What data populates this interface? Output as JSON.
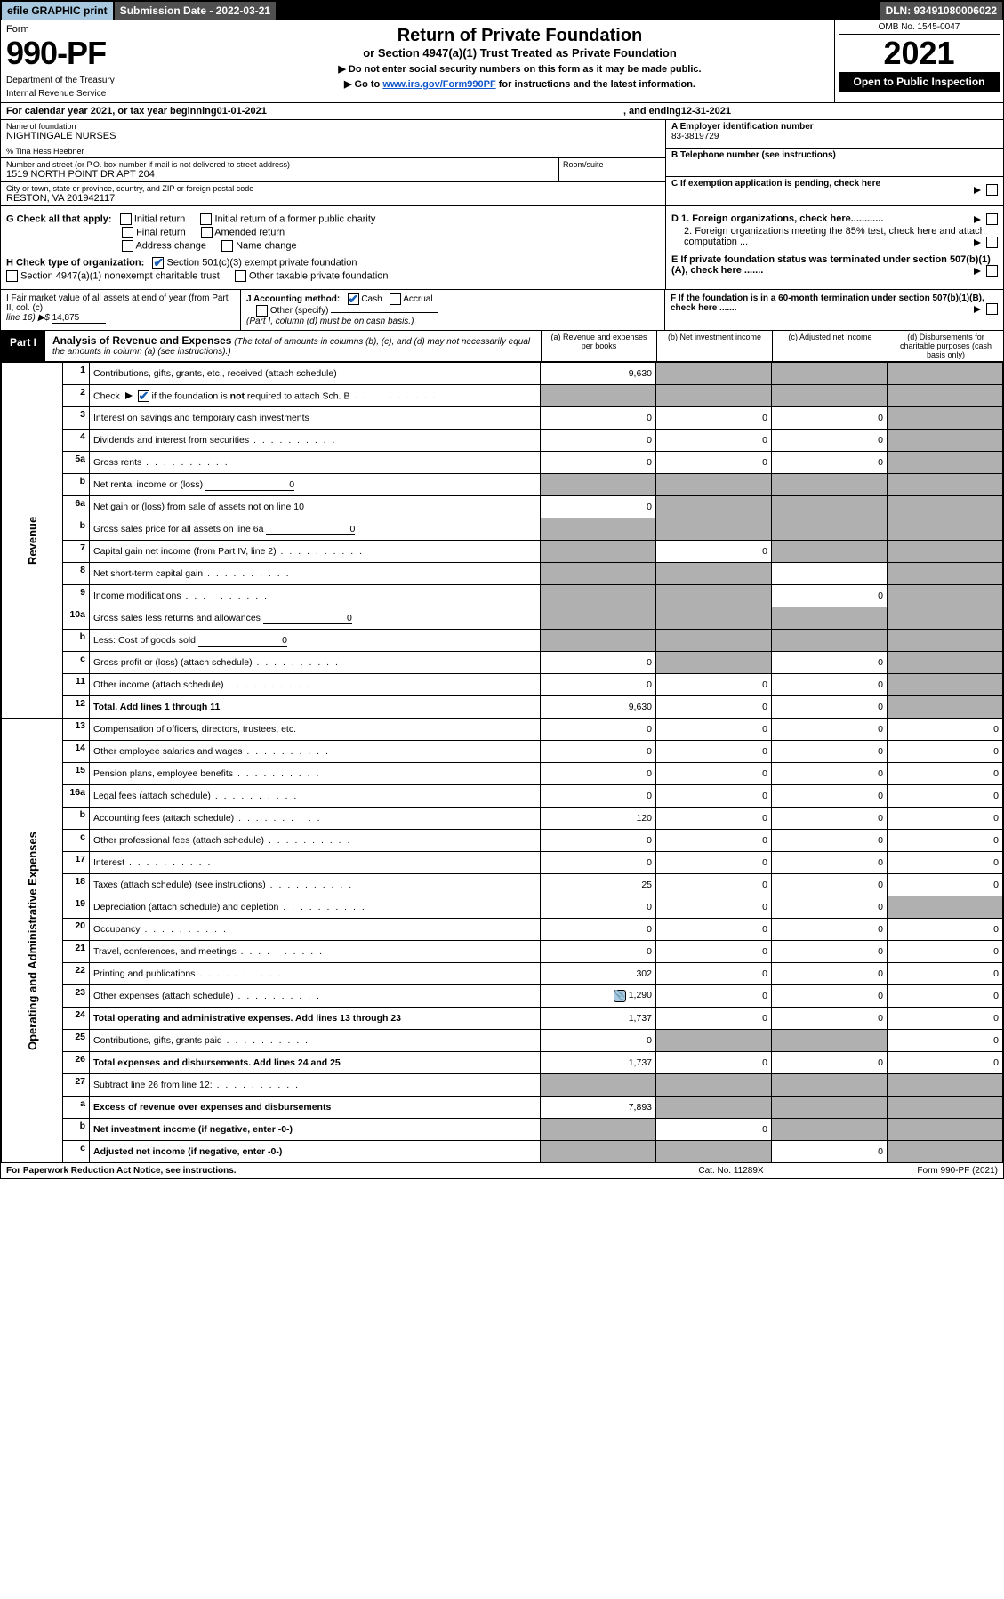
{
  "topbar": {
    "efile": "efile GRAPHIC print",
    "submission_label": "Submission Date - 2022-03-21",
    "dln_label": "DLN: 93491080006022"
  },
  "header": {
    "form_label": "Form",
    "form_number": "990-PF",
    "dept1": "Department of the Treasury",
    "dept2": "Internal Revenue Service",
    "title1": "Return of Private Foundation",
    "title2": "or Section 4947(a)(1) Trust Treated as Private Foundation",
    "title3": "▶ Do not enter social security numbers on this form as it may be made public.",
    "title4_pre": "▶ Go to ",
    "title4_link": "www.irs.gov/Form990PF",
    "title4_post": " for instructions and the latest information.",
    "omb": "OMB No. 1545-0047",
    "year": "2021",
    "open": "Open to Public Inspection"
  },
  "period": {
    "pre": "For calendar year 2021, or tax year beginning ",
    "begin": "01-01-2021",
    "mid": ", and ending ",
    "end": "12-31-2021"
  },
  "info": {
    "name_lbl": "Name of foundation",
    "name": "NIGHTINGALE NURSES",
    "co": "% Tina Hess Heebner",
    "addr_lbl": "Number and street (or P.O. box number if mail is not delivered to street address)",
    "addr": "1519 NORTH POINT DR APT 204",
    "room_lbl": "Room/suite",
    "city_lbl": "City or town, state or province, country, and ZIP or foreign postal code",
    "city": "RESTON, VA  201942117",
    "ein_lbl": "A Employer identification number",
    "ein": "83-3819729",
    "phone_lbl": "B Telephone number (see instructions)",
    "c_lbl": "C If exemption application is pending, check here",
    "d1_lbl": "D 1. Foreign organizations, check here............",
    "d2_lbl": "2. Foreign organizations meeting the 85% test, check here and attach computation ...",
    "e_lbl": "E  If private foundation status was terminated under section 507(b)(1)(A), check here .......",
    "f_lbl": "F  If the foundation is in a 60-month termination under section 507(b)(1)(B), check here ......."
  },
  "checks": {
    "g_lbl": "G Check all that apply:",
    "g_opts": [
      "Initial return",
      "Initial return of a former public charity",
      "Final return",
      "Amended return",
      "Address change",
      "Name change"
    ],
    "h_lbl": "H Check type of organization:",
    "h_opt1": "Section 501(c)(3) exempt private foundation",
    "h_opt2": "Section 4947(a)(1) nonexempt charitable trust",
    "h_opt3": "Other taxable private foundation"
  },
  "ijf": {
    "i_text1": "I Fair market value of all assets at end of year (from Part II, col. (c),",
    "i_text2": "line 16) ▶$ ",
    "i_val": "14,875",
    "j_text": "J Accounting method:",
    "j_cash": "Cash",
    "j_accrual": "Accrual",
    "j_other": "Other (specify)",
    "j_note": "(Part I, column (d) must be on cash basis.)"
  },
  "part1": {
    "tab": "Part I",
    "title": "Analysis of Revenue and Expenses",
    "note": " (The total of amounts in columns (b), (c), and (d) may not necessarily equal the amounts in column (a) (see instructions).)",
    "colA": "(a)   Revenue and expenses per books",
    "colB": "(b)   Net investment income",
    "colC": "(c)   Adjusted net income",
    "colD": "(d)   Disbursements for charitable purposes (cash basis only)"
  },
  "sidelabels": {
    "rev": "Revenue",
    "exp": "Operating and Administrative Expenses"
  },
  "rows": [
    {
      "n": "1",
      "lbl": "Contributions, gifts, grants, etc., received (attach schedule)",
      "a": "9,630",
      "b": "",
      "c": "",
      "d": "",
      "bS": true,
      "cS": true,
      "dS": true
    },
    {
      "n": "2",
      "lbl": "Check ▶ [✓] if the foundation is not required to attach Sch. B",
      "lblHtml": true,
      "a": "",
      "b": "",
      "c": "",
      "d": "",
      "aS": true,
      "bS": true,
      "cS": true,
      "dS": true
    },
    {
      "n": "3",
      "lbl": "Interest on savings and temporary cash investments",
      "a": "0",
      "b": "0",
      "c": "0",
      "d": "",
      "dS": true
    },
    {
      "n": "4",
      "lbl": "Dividends and interest from securities",
      "a": "0",
      "b": "0",
      "c": "0",
      "d": "",
      "dS": true
    },
    {
      "n": "5a",
      "lbl": "Gross rents",
      "a": "0",
      "b": "0",
      "c": "0",
      "d": "",
      "dS": true
    },
    {
      "n": "b",
      "lbl": "Net rental income or (loss)",
      "inline": "0",
      "a": "",
      "b": "",
      "c": "",
      "d": "",
      "aS": true,
      "bS": true,
      "cS": true,
      "dS": true
    },
    {
      "n": "6a",
      "lbl": "Net gain or (loss) from sale of assets not on line 10",
      "a": "0",
      "b": "",
      "c": "",
      "d": "",
      "bS": true,
      "cS": true,
      "dS": true
    },
    {
      "n": "b",
      "lbl": "Gross sales price for all assets on line 6a",
      "inline": "0",
      "a": "",
      "b": "",
      "c": "",
      "d": "",
      "aS": true,
      "bS": true,
      "cS": true,
      "dS": true
    },
    {
      "n": "7",
      "lbl": "Capital gain net income (from Part IV, line 2)",
      "a": "",
      "b": "0",
      "c": "",
      "d": "",
      "aS": true,
      "cS": true,
      "dS": true
    },
    {
      "n": "8",
      "lbl": "Net short-term capital gain",
      "a": "",
      "b": "",
      "c": "",
      "d": "",
      "aS": true,
      "bS": true,
      "dS": true
    },
    {
      "n": "9",
      "lbl": "Income modifications",
      "a": "",
      "b": "",
      "c": "0",
      "d": "",
      "aS": true,
      "bS": true,
      "dS": true
    },
    {
      "n": "10a",
      "lbl": "Gross sales less returns and allowances",
      "inline": "0",
      "a": "",
      "b": "",
      "c": "",
      "d": "",
      "aS": true,
      "bS": true,
      "cS": true,
      "dS": true
    },
    {
      "n": "b",
      "lbl": "Less: Cost of goods sold",
      "inline": "0",
      "a": "",
      "b": "",
      "c": "",
      "d": "",
      "aS": true,
      "bS": true,
      "cS": true,
      "dS": true
    },
    {
      "n": "c",
      "lbl": "Gross profit or (loss) (attach schedule)",
      "a": "0",
      "b": "",
      "c": "0",
      "d": "",
      "bS": true,
      "dS": true
    },
    {
      "n": "11",
      "lbl": "Other income (attach schedule)",
      "a": "0",
      "b": "0",
      "c": "0",
      "d": "",
      "dS": true
    },
    {
      "n": "12",
      "lbl": "Total. Add lines 1 through 11",
      "bold": true,
      "a": "9,630",
      "b": "0",
      "c": "0",
      "d": "",
      "dS": true
    },
    {
      "n": "13",
      "lbl": "Compensation of officers, directors, trustees, etc.",
      "a": "0",
      "b": "0",
      "c": "0",
      "d": "0"
    },
    {
      "n": "14",
      "lbl": "Other employee salaries and wages",
      "a": "0",
      "b": "0",
      "c": "0",
      "d": "0"
    },
    {
      "n": "15",
      "lbl": "Pension plans, employee benefits",
      "a": "0",
      "b": "0",
      "c": "0",
      "d": "0"
    },
    {
      "n": "16a",
      "lbl": "Legal fees (attach schedule)",
      "a": "0",
      "b": "0",
      "c": "0",
      "d": "0"
    },
    {
      "n": "b",
      "lbl": "Accounting fees (attach schedule)",
      "a": "120",
      "b": "0",
      "c": "0",
      "d": "0"
    },
    {
      "n": "c",
      "lbl": "Other professional fees (attach schedule)",
      "a": "0",
      "b": "0",
      "c": "0",
      "d": "0"
    },
    {
      "n": "17",
      "lbl": "Interest",
      "a": "0",
      "b": "0",
      "c": "0",
      "d": "0"
    },
    {
      "n": "18",
      "lbl": "Taxes (attach schedule) (see instructions)",
      "a": "25",
      "b": "0",
      "c": "0",
      "d": "0"
    },
    {
      "n": "19",
      "lbl": "Depreciation (attach schedule) and depletion",
      "a": "0",
      "b": "0",
      "c": "0",
      "d": "",
      "dS": true
    },
    {
      "n": "20",
      "lbl": "Occupancy",
      "a": "0",
      "b": "0",
      "c": "0",
      "d": "0"
    },
    {
      "n": "21",
      "lbl": "Travel, conferences, and meetings",
      "a": "0",
      "b": "0",
      "c": "0",
      "d": "0"
    },
    {
      "n": "22",
      "lbl": "Printing and publications",
      "a": "302",
      "b": "0",
      "c": "0",
      "d": "0"
    },
    {
      "n": "23",
      "lbl": "Other expenses (attach schedule)",
      "icon": true,
      "a": "1,290",
      "b": "0",
      "c": "0",
      "d": "0"
    },
    {
      "n": "24",
      "lbl": "Total operating and administrative expenses. Add lines 13 through 23",
      "bold": true,
      "a": "1,737",
      "b": "0",
      "c": "0",
      "d": "0"
    },
    {
      "n": "25",
      "lbl": "Contributions, gifts, grants paid",
      "a": "0",
      "b": "",
      "c": "",
      "d": "0",
      "bS": true,
      "cS": true
    },
    {
      "n": "26",
      "lbl": "Total expenses and disbursements. Add lines 24 and 25",
      "bold": true,
      "a": "1,737",
      "b": "0",
      "c": "0",
      "d": "0"
    },
    {
      "n": "27",
      "lbl": "Subtract line 26 from line 12:",
      "a": "",
      "b": "",
      "c": "",
      "d": "",
      "aS": true,
      "bS": true,
      "cS": true,
      "dS": true
    },
    {
      "n": "a",
      "lbl": "Excess of revenue over expenses and disbursements",
      "bold": true,
      "a": "7,893",
      "b": "",
      "c": "",
      "d": "",
      "bS": true,
      "cS": true,
      "dS": true
    },
    {
      "n": "b",
      "lbl": "Net investment income (if negative, enter -0-)",
      "bold": true,
      "a": "",
      "b": "0",
      "c": "",
      "d": "",
      "aS": true,
      "cS": true,
      "dS": true
    },
    {
      "n": "c",
      "lbl": "Adjusted net income (if negative, enter -0-)",
      "bold": true,
      "a": "",
      "b": "",
      "c": "0",
      "d": "",
      "aS": true,
      "bS": true,
      "dS": true
    }
  ],
  "footer": {
    "left": "For Paperwork Reduction Act Notice, see instructions.",
    "center": "Cat. No. 11289X",
    "right": "Form 990-PF (2021)"
  }
}
